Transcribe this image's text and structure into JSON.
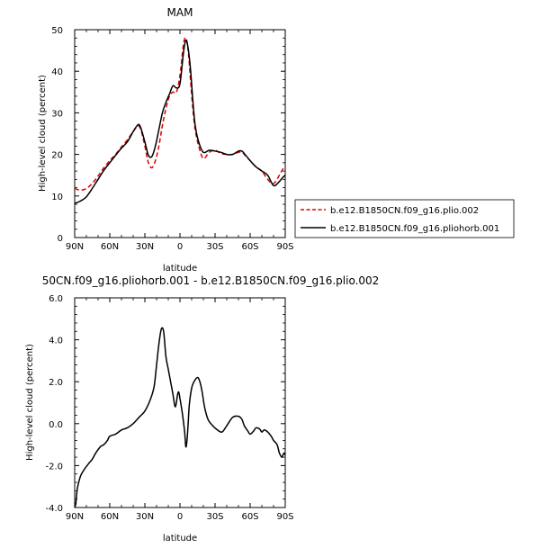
{
  "chart_data": [
    {
      "type": "line",
      "title": "MAM",
      "subtitle": "",
      "xlabel": "latitude",
      "ylabel": "High-level cloud (percent)",
      "xlim": [
        90,
        -90
      ],
      "ylim": [
        0,
        50
      ],
      "x_ticks": [
        {
          "value": 90,
          "label": "90N"
        },
        {
          "value": 60,
          "label": "60N"
        },
        {
          "value": 30,
          "label": "30N"
        },
        {
          "value": 0,
          "label": "0"
        },
        {
          "value": -30,
          "label": "30S"
        },
        {
          "value": -60,
          "label": "60S"
        },
        {
          "value": -90,
          "label": "90S"
        }
      ],
      "y_ticks": [
        {
          "value": 0,
          "label": "0"
        },
        {
          "value": 10,
          "label": "10"
        },
        {
          "value": 20,
          "label": "20"
        },
        {
          "value": 30,
          "label": "30"
        },
        {
          "value": 40,
          "label": "40"
        },
        {
          "value": 50,
          "label": "50"
        }
      ],
      "legend_position": "right",
      "series": [
        {
          "name": "b.e12.B1850CN.f09_g16.plio.002",
          "color": "#e00000",
          "dash": "dashed",
          "x": [
            90,
            85,
            80,
            75,
            70,
            65,
            60,
            55,
            50,
            45,
            40,
            37,
            35,
            33,
            30,
            27,
            24,
            21,
            18,
            15,
            12,
            9,
            6,
            3,
            0,
            -3,
            -5,
            -7,
            -9,
            -11,
            -13,
            -16,
            -20,
            -25,
            -30,
            -35,
            -40,
            -45,
            -50,
            -53,
            -55,
            -60,
            -65,
            -70,
            -75,
            -80,
            -85,
            -88,
            -90
          ],
          "y": [
            11.8,
            11.4,
            11.8,
            13.0,
            14.8,
            16.8,
            18.5,
            20.0,
            21.8,
            23.5,
            25.5,
            26.6,
            26.8,
            25.5,
            22.0,
            18.0,
            16.8,
            18.5,
            22.0,
            27.0,
            31.0,
            34.0,
            35.0,
            35.0,
            39.0,
            46.5,
            48.0,
            45.0,
            38.0,
            31.0,
            26.0,
            22.0,
            19.0,
            20.5,
            21.0,
            20.2,
            20.0,
            20.0,
            20.5,
            20.6,
            20.0,
            18.5,
            17.0,
            16.0,
            14.0,
            13.0,
            15.0,
            16.5,
            17.0
          ]
        },
        {
          "name": "b.e12.B1850CN.f09_g16.pliohorb.001",
          "color": "#000000",
          "dash": "solid",
          "x": [
            90,
            85,
            80,
            75,
            70,
            65,
            60,
            55,
            50,
            45,
            40,
            37,
            35,
            33,
            30,
            27,
            24,
            21,
            18,
            15,
            12,
            9,
            6,
            3,
            0,
            -3,
            -5,
            -7,
            -9,
            -11,
            -13,
            -16,
            -20,
            -25,
            -30,
            -35,
            -40,
            -45,
            -50,
            -53,
            -55,
            -60,
            -65,
            -70,
            -75,
            -80,
            -85,
            -88,
            -90
          ],
          "y": [
            8.2,
            8.8,
            9.8,
            11.8,
            14.0,
            16.2,
            18.0,
            19.8,
            21.5,
            23.0,
            25.5,
            26.8,
            27.2,
            26.0,
            23.0,
            19.8,
            19.5,
            22.0,
            26.0,
            30.0,
            32.5,
            34.5,
            36.5,
            36.0,
            37.0,
            44.5,
            47.5,
            45.5,
            40.5,
            33.0,
            27.0,
            23.0,
            20.5,
            21.0,
            20.8,
            20.5,
            20.0,
            20.0,
            20.8,
            20.8,
            20.2,
            18.5,
            17.0,
            16.0,
            15.0,
            12.5,
            13.5,
            14.5,
            15.0
          ]
        }
      ]
    },
    {
      "type": "line",
      "title": "50CN.f09_g16.pliohorb.001 - b.e12.B1850CN.f09_g16.plio.002",
      "xlabel": "latitude",
      "ylabel": "High-level cloud (percent)",
      "xlim": [
        90,
        -90
      ],
      "ylim": [
        -4.0,
        6.0
      ],
      "x_ticks": [
        {
          "value": 90,
          "label": "90N"
        },
        {
          "value": 60,
          "label": "60N"
        },
        {
          "value": 30,
          "label": "30N"
        },
        {
          "value": 0,
          "label": "0"
        },
        {
          "value": -30,
          "label": "30S"
        },
        {
          "value": -60,
          "label": "60S"
        },
        {
          "value": -90,
          "label": "90S"
        }
      ],
      "y_ticks": [
        {
          "value": -4.0,
          "label": "-4.0"
        },
        {
          "value": -2.0,
          "label": "-2.0"
        },
        {
          "value": 0.0,
          "label": "0.0"
        },
        {
          "value": 2.0,
          "label": "2.0"
        },
        {
          "value": 4.0,
          "label": "4.0"
        },
        {
          "value": 6.0,
          "label": "6.0"
        }
      ],
      "series": [
        {
          "color": "#000000",
          "dash": "solid",
          "x": [
            90,
            89,
            88,
            87,
            85,
            82,
            78,
            75,
            72,
            68,
            65,
            62,
            60,
            55,
            50,
            45,
            40,
            35,
            30,
            25,
            22,
            20,
            18,
            16,
            14,
            12,
            10,
            8,
            6,
            4,
            2,
            1,
            0,
            -2,
            -4,
            -5,
            -6,
            -7,
            -8,
            -10,
            -12,
            -15,
            -17,
            -19,
            -21,
            -24,
            -28,
            -32,
            -36,
            -40,
            -45,
            -50,
            -53,
            -55,
            -58,
            -60,
            -63,
            -65,
            -68,
            -70,
            -72,
            -75,
            -78,
            -80,
            -83,
            -85,
            -87,
            -88,
            -89,
            -90
          ],
          "y": [
            -4.0,
            -3.8,
            -3.2,
            -2.9,
            -2.5,
            -2.2,
            -1.9,
            -1.7,
            -1.4,
            -1.1,
            -1.0,
            -0.8,
            -0.6,
            -0.5,
            -0.3,
            -0.2,
            0.0,
            0.3,
            0.6,
            1.2,
            1.8,
            2.8,
            3.8,
            4.5,
            4.4,
            3.2,
            2.6,
            2.0,
            1.4,
            0.8,
            1.4,
            1.5,
            1.2,
            0.5,
            -0.4,
            -1.1,
            -0.8,
            0.0,
            0.9,
            1.7,
            2.0,
            2.2,
            2.0,
            1.5,
            0.8,
            0.2,
            -0.1,
            -0.3,
            -0.4,
            -0.1,
            0.3,
            0.35,
            0.2,
            -0.1,
            -0.35,
            -0.5,
            -0.35,
            -0.2,
            -0.25,
            -0.4,
            -0.3,
            -0.4,
            -0.6,
            -0.8,
            -1.0,
            -1.4,
            -1.6,
            -1.5,
            -1.4,
            -1.5
          ]
        }
      ]
    }
  ]
}
